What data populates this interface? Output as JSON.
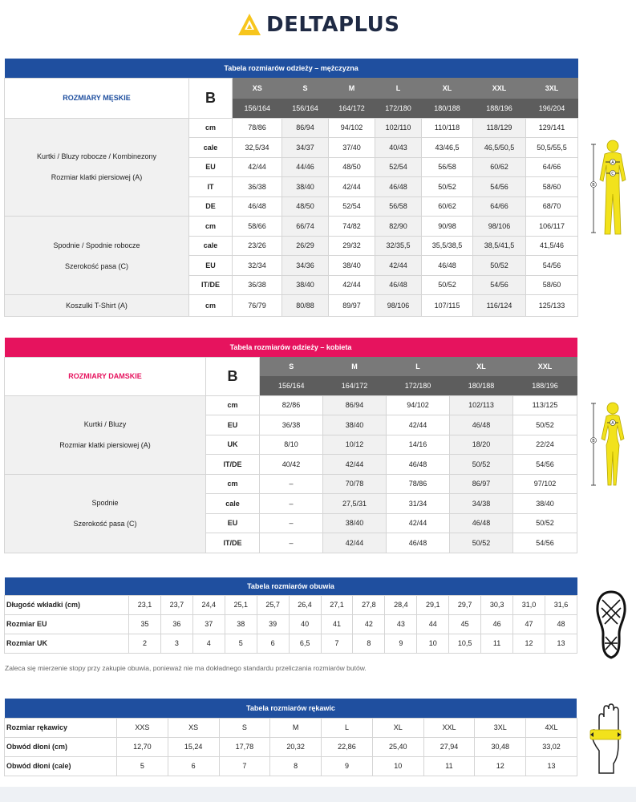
{
  "brand": "DELTAPLUS",
  "men": {
    "bar_title": "Tabela rozmiarów odzieży – mężczyzna",
    "title": "ROZMIARY MĘSKIE",
    "b_label": "B",
    "sizes": [
      "XS",
      "S",
      "M",
      "L",
      "XL",
      "XXL",
      "3XL"
    ],
    "heights": [
      "156/164",
      "156/164",
      "164/172",
      "172/180",
      "180/188",
      "188/196",
      "196/204"
    ],
    "group1": {
      "name": "Kurtki / Bluzy robocze / Kombinezony",
      "measure": "Rozmiar klatki piersiowej (A)",
      "rows": [
        {
          "unit": "cm",
          "values": [
            "78/86",
            "86/94",
            "94/102",
            "102/110",
            "110/118",
            "118/129",
            "129/141"
          ]
        },
        {
          "unit": "cale",
          "values": [
            "32,5/34",
            "34/37",
            "37/40",
            "40/43",
            "43/46,5",
            "46,5/50,5",
            "50,5/55,5"
          ]
        },
        {
          "unit": "EU",
          "values": [
            "42/44",
            "44/46",
            "48/50",
            "52/54",
            "56/58",
            "60/62",
            "64/66"
          ]
        },
        {
          "unit": "IT",
          "values": [
            "36/38",
            "38/40",
            "42/44",
            "46/48",
            "50/52",
            "54/56",
            "58/60"
          ]
        },
        {
          "unit": "DE",
          "values": [
            "46/48",
            "48/50",
            "52/54",
            "56/58",
            "60/62",
            "64/66",
            "68/70"
          ]
        }
      ]
    },
    "group2": {
      "name": "Spodnie / Spodnie robocze",
      "measure": "Szerokość pasa (C)",
      "rows": [
        {
          "unit": "cm",
          "values": [
            "58/66",
            "66/74",
            "74/82",
            "82/90",
            "90/98",
            "98/106",
            "106/117"
          ]
        },
        {
          "unit": "cale",
          "values": [
            "23/26",
            "26/29",
            "29/32",
            "32/35,5",
            "35,5/38,5",
            "38,5/41,5",
            "41,5/46"
          ]
        },
        {
          "unit": "EU",
          "values": [
            "32/34",
            "34/36",
            "38/40",
            "42/44",
            "46/48",
            "50/52",
            "54/56"
          ]
        },
        {
          "unit": "IT/DE",
          "values": [
            "36/38",
            "38/40",
            "42/44",
            "46/48",
            "50/52",
            "54/56",
            "58/60"
          ]
        }
      ]
    },
    "group3": {
      "name": "Koszulki T-Shirt (A)",
      "rows": [
        {
          "unit": "cm",
          "values": [
            "76/79",
            "80/88",
            "89/97",
            "98/106",
            "107/115",
            "116/124",
            "125/133"
          ]
        }
      ]
    }
  },
  "women": {
    "bar_title": "Tabela rozmiarów odzieży – kobieta",
    "title": "ROZMIARY DAMSKIE",
    "b_label": "B",
    "sizes": [
      "S",
      "M",
      "L",
      "XL",
      "XXL"
    ],
    "heights": [
      "156/164",
      "164/172",
      "172/180",
      "180/188",
      "188/196"
    ],
    "group1": {
      "name": "Kurtki / Bluzy",
      "measure": "Rozmiar klatki piersiowej (A)",
      "rows": [
        {
          "unit": "cm",
          "values": [
            "82/86",
            "86/94",
            "94/102",
            "102/113",
            "113/125"
          ]
        },
        {
          "unit": "EU",
          "values": [
            "36/38",
            "38/40",
            "42/44",
            "46/48",
            "50/52"
          ]
        },
        {
          "unit": "UK",
          "values": [
            "8/10",
            "10/12",
            "14/16",
            "18/20",
            "22/24"
          ]
        },
        {
          "unit": "IT/DE",
          "values": [
            "40/42",
            "42/44",
            "46/48",
            "50/52",
            "54/56"
          ]
        }
      ]
    },
    "group2": {
      "name": "Spodnie",
      "measure": "Szerokość pasa (C)",
      "rows": [
        {
          "unit": "cm",
          "values": [
            "–",
            "70/78",
            "78/86",
            "86/97",
            "97/102"
          ]
        },
        {
          "unit": "cale",
          "values": [
            "–",
            "27,5/31",
            "31/34",
            "34/38",
            "38/40"
          ]
        },
        {
          "unit": "EU",
          "values": [
            "–",
            "38/40",
            "42/44",
            "46/48",
            "50/52"
          ]
        },
        {
          "unit": "IT/DE",
          "values": [
            "–",
            "42/44",
            "46/48",
            "50/52",
            "54/56"
          ]
        }
      ]
    }
  },
  "shoes": {
    "bar_title": "Tabela rozmiarów obuwia",
    "rows": [
      {
        "label": "Długość wkładki (cm)",
        "values": [
          "23,1",
          "23,7",
          "24,4",
          "25,1",
          "25,7",
          "26,4",
          "27,1",
          "27,8",
          "28,4",
          "29,1",
          "29,7",
          "30,3",
          "31,0",
          "31,6"
        ]
      },
      {
        "label": "Rozmiar EU",
        "values": [
          "35",
          "36",
          "37",
          "38",
          "39",
          "40",
          "41",
          "42",
          "43",
          "44",
          "45",
          "46",
          "47",
          "48"
        ]
      },
      {
        "label": "Rozmiar UK",
        "values": [
          "2",
          "3",
          "4",
          "5",
          "6",
          "6,5",
          "7",
          "8",
          "9",
          "10",
          "10,5",
          "11",
          "12",
          "13"
        ]
      }
    ],
    "note": "Zaleca się mierzenie stopy przy zakupie obuwia, ponieważ nie ma dokładnego standardu przeliczania rozmiarów butów."
  },
  "gloves": {
    "bar_title": "Tabela rozmiarów rękawic",
    "rows": [
      {
        "label": "Rozmiar rękawicy",
        "values": [
          "XXS",
          "XS",
          "S",
          "M",
          "L",
          "XL",
          "XXL",
          "3XL",
          "4XL"
        ]
      },
      {
        "label": "Obwód dłoni (cm)",
        "values": [
          "12,70",
          "15,24",
          "17,78",
          "20,32",
          "22,86",
          "25,40",
          "27,94",
          "30,48",
          "33,02"
        ]
      },
      {
        "label": "Obwód dłoni (cale)",
        "values": [
          "5",
          "6",
          "7",
          "8",
          "9",
          "10",
          "11",
          "12",
          "13"
        ]
      }
    ]
  },
  "colors": {
    "men_accent": "#1f4f9f",
    "women_accent": "#e6135e",
    "figure_yellow": "#f2e21c"
  },
  "icons": [
    "deltaplus-logo-icon",
    "male-body-figure-icon",
    "female-body-figure-icon",
    "shoe-sole-icon",
    "hand-glove-icon"
  ]
}
